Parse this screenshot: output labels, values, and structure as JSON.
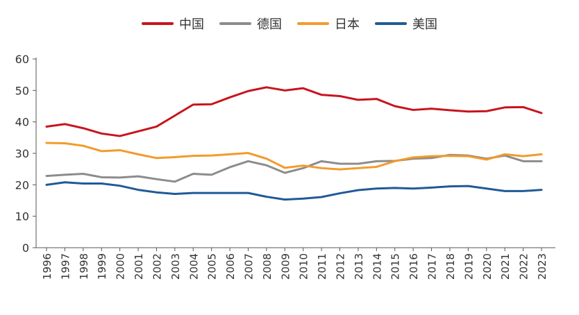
{
  "chart_data": {
    "type": "line",
    "title": "",
    "xlabel": "",
    "ylabel": "",
    "ylim": [
      0,
      60
    ],
    "yticks": [
      0,
      10,
      20,
      30,
      40,
      50,
      60
    ],
    "legend_position": "top-center",
    "grid": false,
    "categories": [
      "1996",
      "1997",
      "1998",
      "1999",
      "2000",
      "2001",
      "2002",
      "2003",
      "2004",
      "2005",
      "2006",
      "2007",
      "2008",
      "2009",
      "2010",
      "2011",
      "2012",
      "2013",
      "2014",
      "2015",
      "2016",
      "2017",
      "2018",
      "2019",
      "2020",
      "2021",
      "2022",
      "2023"
    ],
    "category_labels": [
      "1996",
      "1997",
      "1998",
      "1999",
      "2000",
      "2001",
      "2002",
      "2003",
      "2004",
      "2005",
      "2006",
      "2007",
      "2008",
      "2009",
      "2010",
      "2011",
      "2012",
      "2013",
      "2014",
      "2015",
      "2016",
      "2017",
      "2018",
      "2019",
      "2020",
      "2021",
      "2022",
      "2023"
    ],
    "series": [
      {
        "name": "中国",
        "color": "#c8141e",
        "values": [
          38.5,
          39.3,
          38.0,
          36.3,
          35.5,
          37.0,
          38.5,
          42.0,
          45.5,
          45.6,
          47.8,
          49.8,
          51.0,
          50.0,
          50.7,
          48.6,
          48.2,
          47.0,
          47.3,
          45.0,
          43.8,
          44.2,
          43.7,
          43.3,
          43.4,
          44.6,
          44.7,
          42.8
        ]
      },
      {
        "name": "德国",
        "color": "#8c8c8c",
        "values": [
          22.8,
          23.2,
          23.5,
          22.4,
          22.3,
          22.7,
          21.8,
          21.0,
          23.5,
          23.2,
          25.6,
          27.5,
          26.2,
          23.8,
          25.3,
          27.5,
          26.7,
          26.7,
          27.5,
          27.6,
          28.3,
          28.5,
          29.5,
          29.3,
          28.3,
          29.3,
          27.5,
          27.5
        ]
      },
      {
        "name": "日本",
        "color": "#f39a2b",
        "values": [
          33.3,
          33.2,
          32.4,
          30.7,
          31.0,
          29.7,
          28.5,
          28.8,
          29.2,
          29.3,
          29.7,
          30.1,
          28.3,
          25.4,
          26.1,
          25.3,
          24.9,
          25.3,
          25.7,
          27.5,
          28.7,
          29.1,
          29.2,
          29.1,
          28.0,
          29.7,
          29.1,
          29.7
        ]
      },
      {
        "name": "美国",
        "color": "#1f5a96",
        "values": [
          20.0,
          20.8,
          20.4,
          20.4,
          19.7,
          18.4,
          17.6,
          17.1,
          17.4,
          17.4,
          17.4,
          17.4,
          16.2,
          15.3,
          15.6,
          16.1,
          17.3,
          18.3,
          18.8,
          19.0,
          18.8,
          19.1,
          19.5,
          19.6,
          18.8,
          18.0,
          18.0,
          18.4
        ]
      }
    ]
  }
}
